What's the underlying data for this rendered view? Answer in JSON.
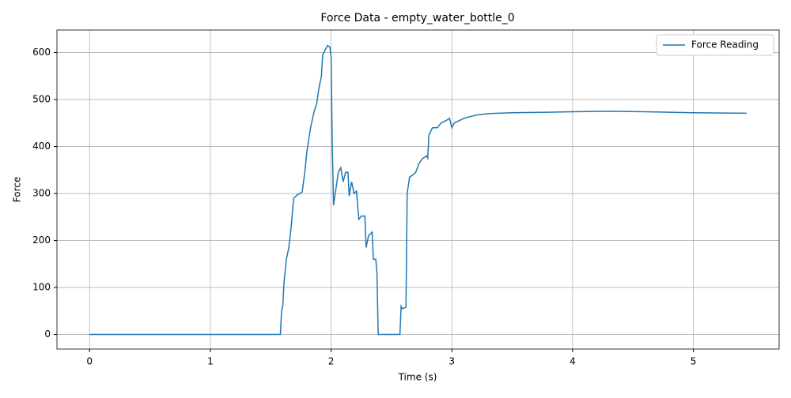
{
  "chart_data": {
    "type": "line",
    "title": "Force Data - empty_water_bottle_0",
    "xlabel": "Time (s)",
    "ylabel": "Force",
    "x": [
      0,
      1.58,
      1.59,
      1.6,
      1.61,
      1.63,
      1.65,
      1.67,
      1.69,
      1.72,
      1.76,
      1.78,
      1.8,
      1.83,
      1.86,
      1.88,
      1.9,
      1.92,
      1.93,
      1.95,
      1.97,
      1.99,
      2.0,
      2.01,
      2.02,
      2.04,
      2.06,
      2.08,
      2.1,
      2.12,
      2.14,
      2.15,
      2.17,
      2.19,
      2.21,
      2.23,
      2.25,
      2.28,
      2.29,
      2.31,
      2.34,
      2.35,
      2.37,
      2.38,
      2.39,
      2.57,
      2.58,
      2.59,
      2.62,
      2.63,
      2.65,
      2.68,
      2.7,
      2.73,
      2.76,
      2.79,
      2.8,
      2.81,
      2.84,
      2.88,
      2.91,
      2.95,
      2.98,
      3.0,
      3.02,
      3.1,
      3.2,
      3.3,
      3.5,
      3.8,
      4.0,
      4.3,
      4.6,
      5.0,
      5.44
    ],
    "series": [
      {
        "name": "Force Reading",
        "color": "#1f77b4",
        "values": [
          0,
          0,
          50,
          60,
          110,
          160,
          185,
          230,
          290,
          297,
          303,
          340,
          390,
          440,
          475,
          490,
          525,
          550,
          595,
          605,
          615,
          612,
          590,
          400,
          275,
          310,
          345,
          355,
          325,
          345,
          345,
          295,
          325,
          300,
          305,
          245,
          252,
          252,
          185,
          210,
          218,
          160,
          160,
          130,
          0,
          0,
          60,
          55,
          58,
          300,
          335,
          340,
          345,
          365,
          375,
          380,
          375,
          425,
          440,
          440,
          450,
          455,
          460,
          440,
          450,
          460,
          467,
          470,
          472,
          473,
          474,
          475,
          474,
          472,
          471
        ]
      }
    ],
    "xlim": [
      -0.27,
      5.71
    ],
    "ylim": [
      -31,
      648
    ],
    "xticks": [
      0,
      1,
      2,
      3,
      4,
      5
    ],
    "yticks": [
      0,
      100,
      200,
      300,
      400,
      500,
      600
    ],
    "grid": true,
    "legend": "upper right"
  }
}
